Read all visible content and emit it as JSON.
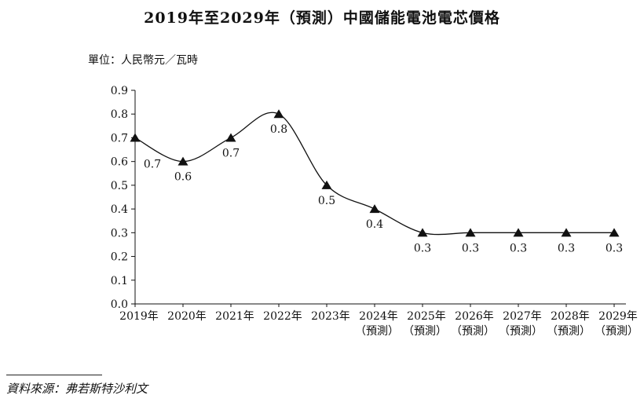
{
  "title": "2019年至2029年（預測）中國儲能電池電芯價格",
  "unit_label": "單位：人民幣元／瓦時",
  "source": "資料來源：弗若斯特沙利文",
  "chart_data": {
    "type": "line",
    "title": "2019年至2029年（預測）中國儲能電池電芯價格",
    "ylabel": "單位：人民幣元／瓦時",
    "xlabel": "",
    "ylim": [
      0,
      0.9
    ],
    "yticks": [
      "0.0",
      "0.1",
      "0.2",
      "0.3",
      "0.4",
      "0.5",
      "0.6",
      "0.7",
      "0.8",
      "0.9"
    ],
    "categories": [
      [
        "2019年"
      ],
      [
        "2020年"
      ],
      [
        "2021年"
      ],
      [
        "2022年"
      ],
      [
        "2023年"
      ],
      [
        "2024年",
        "（預測）"
      ],
      [
        "2025年",
        "（預測）"
      ],
      [
        "2026年",
        "（預測）"
      ],
      [
        "2027年",
        "（預測）"
      ],
      [
        "2028年",
        "（預測）"
      ],
      [
        "2029年",
        "（預測）"
      ]
    ],
    "values": [
      0.7,
      0.6,
      0.7,
      0.8,
      0.5,
      0.4,
      0.3,
      0.3,
      0.3,
      0.3,
      0.3
    ],
    "data_labels": [
      "0.7",
      "0.6",
      "0.7",
      "0.8",
      "0.5",
      "0.4",
      "0.3",
      "0.3",
      "0.3",
      "0.3",
      "0.3"
    ],
    "marker": "triangle",
    "line_style": "smooth",
    "grid": false,
    "colors": {
      "line": "#111111",
      "marker": "#111111"
    }
  }
}
